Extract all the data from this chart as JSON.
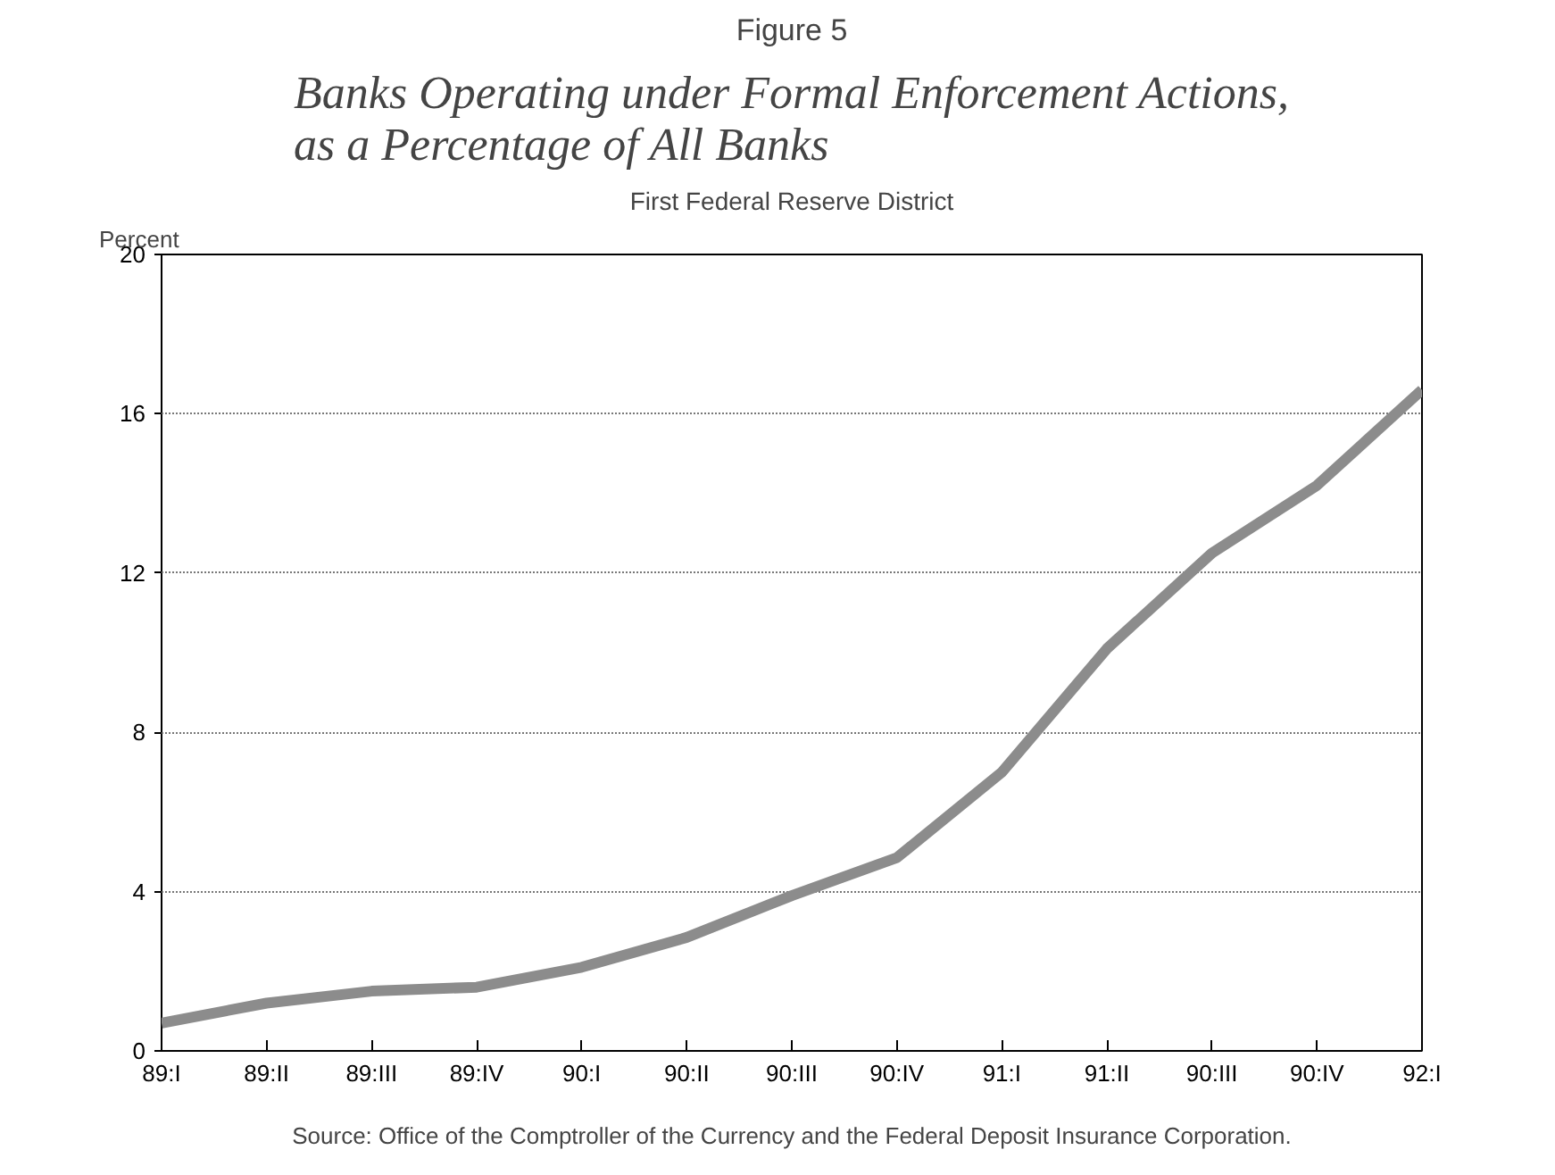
{
  "chart_data": {
    "type": "line",
    "title": "Banks Operating under Formal Enforcement Actions,\nas a Percentage of All Banks",
    "subtitle": "First Federal Reserve District",
    "ylabel": "Percent",
    "categories": [
      "89:I",
      "89:II",
      "89:III",
      "89:IV",
      "90:I",
      "90:II",
      "90:III",
      "90:IV",
      "91:I",
      "91:II",
      "90:III",
      "90:IV",
      "92:I"
    ],
    "series": [
      {
        "color": "#8c8c8c",
        "values": [
          0.7,
          1.2,
          1.5,
          1.6,
          2.1,
          2.85,
          3.9,
          4.85,
          7.0,
          10.1,
          12.5,
          14.2,
          16.6
        ]
      }
    ],
    "ylim": [
      0,
      20
    ],
    "yticks": [
      0,
      4,
      8,
      12,
      16,
      20
    ],
    "grid": "y",
    "marker": "none",
    "line_style": "solid",
    "annotations": [
      "Figure 5",
      "Source: Office of the Comptroller of the Currency and the Federal Deposit Insurance Corporation."
    ]
  }
}
